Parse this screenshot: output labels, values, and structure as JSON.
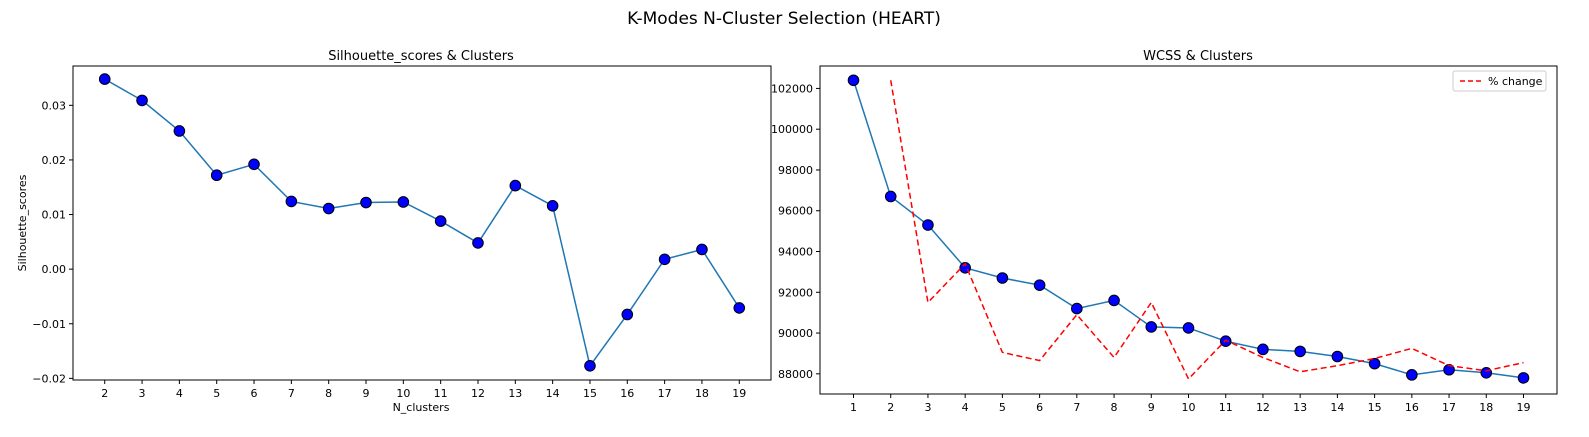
{
  "suptitle": "K-Modes N-Cluster Selection (HEART)",
  "chart_data": [
    {
      "type": "line",
      "title": "Silhouette_scores & Clusters",
      "xlabel": "N_clusters",
      "ylabel": "Silhouette_scores",
      "x": [
        2,
        3,
        4,
        5,
        6,
        7,
        8,
        9,
        10,
        11,
        12,
        13,
        14,
        15,
        16,
        17,
        18,
        19
      ],
      "xticks": [
        2,
        3,
        4,
        5,
        6,
        7,
        8,
        9,
        10,
        11,
        12,
        13,
        14,
        15,
        16,
        17,
        18,
        19
      ],
      "yticks": [
        -0.02,
        -0.01,
        0.0,
        0.01,
        0.02,
        0.03
      ],
      "ytick_labels": [
        "−0.02",
        "−0.01",
        "0.00",
        "0.01",
        "0.02",
        "0.03"
      ],
      "xlim": [
        1.15,
        19.85
      ],
      "ylim": [
        -0.0203,
        0.0372
      ],
      "grid": false,
      "series": [
        {
          "values": [
            0.0348,
            0.0309,
            0.0253,
            0.0172,
            0.0192,
            0.0124,
            0.0111,
            0.0122,
            0.0123,
            0.0088,
            0.0048,
            0.0153,
            0.0116,
            -0.0177,
            -0.0083,
            0.0018,
            0.0036,
            -0.0071
          ],
          "line_color": "#1f77b4",
          "marker_color": "#0000ff",
          "marker_edge": "#000000"
        }
      ]
    },
    {
      "type": "line",
      "title": "WCSS & Clusters",
      "xlabel": "",
      "ylabel": "",
      "x": [
        1,
        2,
        3,
        4,
        5,
        6,
        7,
        8,
        9,
        10,
        11,
        12,
        13,
        14,
        15,
        16,
        17,
        18,
        19
      ],
      "xticks": [
        1,
        2,
        3,
        4,
        5,
        6,
        7,
        8,
        9,
        10,
        11,
        12,
        13,
        14,
        15,
        16,
        17,
        18,
        19
      ],
      "yticks": [
        88000,
        90000,
        92000,
        94000,
        96000,
        98000,
        100000,
        102000
      ],
      "ytick_labels": [
        "88000",
        "90000",
        "92000",
        "94000",
        "96000",
        "98000",
        "100000",
        "102000"
      ],
      "xlim": [
        0.1,
        19.9
      ],
      "ylim": [
        87010,
        103100
      ],
      "grid": false,
      "legend": {
        "position": "top-right",
        "entries": [
          "% change"
        ]
      },
      "series": [
        {
          "values": [
            102400,
            96700,
            95300,
            93200,
            92700,
            92350,
            91200,
            91600,
            90300,
            90250,
            89600,
            89200,
            89100,
            88850,
            88500,
            87950,
            88200,
            88050,
            87800
          ],
          "line_color": "#1f77b4",
          "marker_color": "#0000ff",
          "marker_edge": "#000000"
        },
        {
          "name": "% change",
          "x": [
            2,
            3,
            4,
            5,
            6,
            7,
            8,
            9,
            10,
            11,
            12,
            13,
            14,
            15,
            16,
            17,
            18,
            19
          ],
          "values": [
            102400,
            91500,
            93400,
            89050,
            88650,
            90900,
            88800,
            91500,
            87750,
            89650,
            88800,
            88100,
            88400,
            88750,
            89250,
            88400,
            88150,
            88550
          ],
          "line_color": "#ff0000",
          "dashed": true
        }
      ]
    }
  ]
}
